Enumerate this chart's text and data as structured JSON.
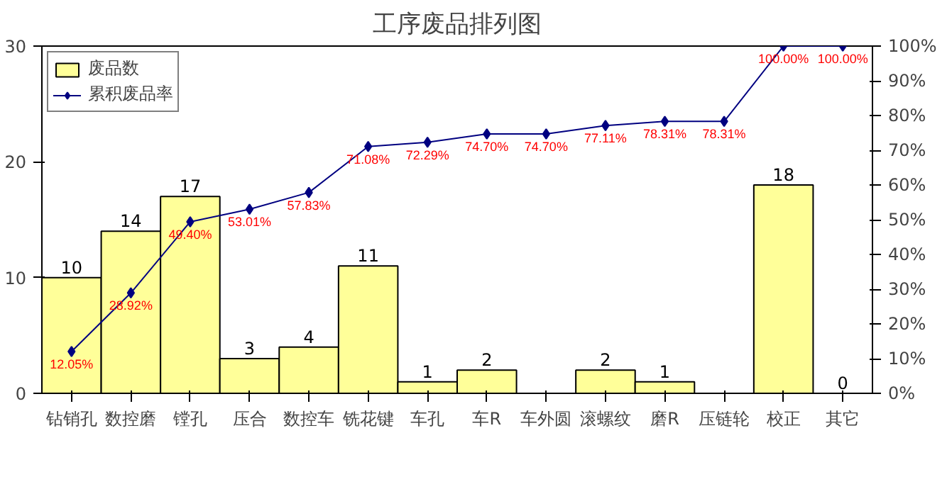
{
  "chart_data": {
    "type": "bar",
    "title": "工序废品排列图",
    "categories": [
      "钻销孔",
      "数控磨",
      "镗孔",
      "压合",
      "数控车",
      "铣花键",
      "车孔",
      "车R",
      "车外圆",
      "滚螺纹",
      "磨R",
      "压链轮",
      "校正",
      "其它"
    ],
    "series": [
      {
        "name": "废品数",
        "color": "#ffff99",
        "values": [
          10,
          14,
          17,
          3,
          4,
          11,
          1,
          2,
          0,
          2,
          1,
          0,
          18,
          0
        ],
        "value_labels": [
          "10",
          "14",
          "17",
          "3",
          "4",
          "11",
          "1",
          "2",
          null,
          "2",
          "1",
          null,
          "18",
          "0"
        ]
      },
      {
        "name": "累积废品率",
        "type": "line",
        "axis": "y2",
        "color": "#000080",
        "marker": "diamond",
        "values": [
          12.05,
          28.92,
          49.4,
          53.01,
          57.83,
          71.08,
          72.29,
          74.7,
          74.7,
          77.11,
          78.31,
          78.31,
          100.0,
          100.0
        ],
        "value_labels": [
          "12.05%",
          "28.92%",
          "49.40%",
          "53.01%",
          "57.83%",
          "71.08%",
          "72.29%",
          "74.70%",
          "74.70%",
          "77.11%",
          "78.31%",
          "78.31%",
          "100.00%",
          "100.00%"
        ]
      }
    ],
    "ylim": [
      0,
      30
    ],
    "yticks": [
      0,
      10,
      20,
      30
    ],
    "y2lim": [
      0,
      100
    ],
    "y2ticks": [
      {
        "value": 0,
        "label": "0%"
      },
      {
        "value": 10,
        "label": "10%"
      },
      {
        "value": 20,
        "label": "20%"
      },
      {
        "value": 30,
        "label": "30%"
      },
      {
        "value": 40,
        "label": "40%"
      },
      {
        "value": 50,
        "label": "50%"
      },
      {
        "value": 60,
        "label": "60%"
      },
      {
        "value": 70,
        "label": "70%"
      },
      {
        "value": 80,
        "label": "80%"
      },
      {
        "value": 90,
        "label": "90%"
      },
      {
        "value": 100,
        "label": "100%"
      }
    ],
    "grid": false,
    "legend": "top left"
  }
}
